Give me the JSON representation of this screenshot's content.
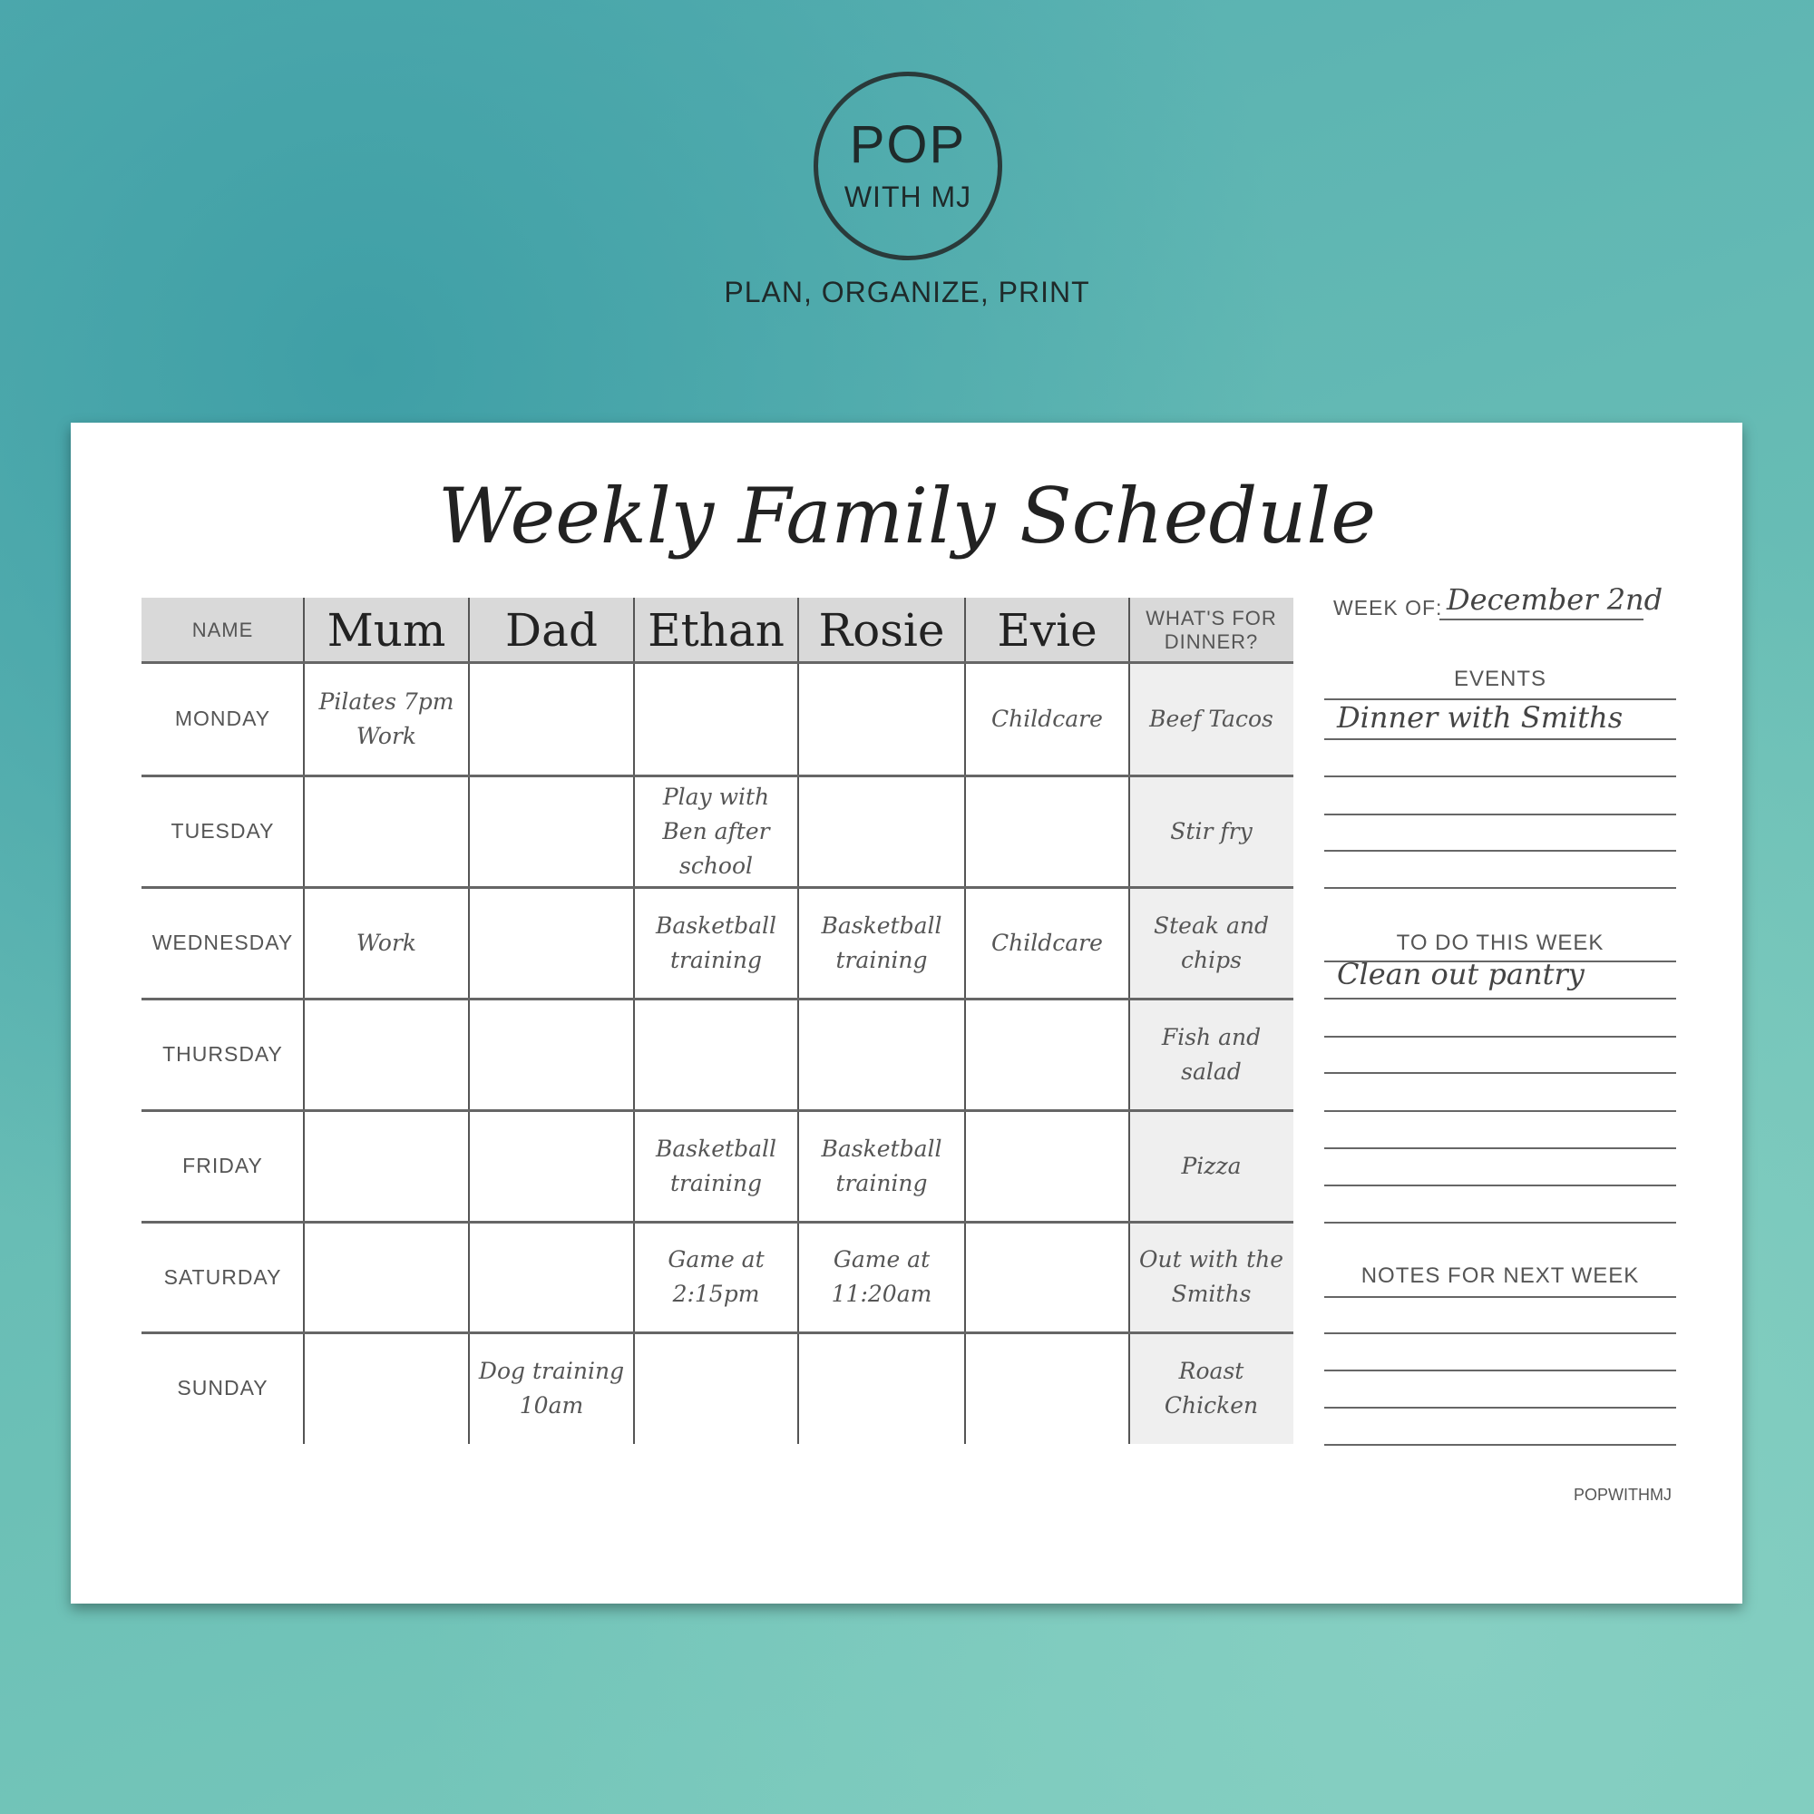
{
  "logo": {
    "line1": "POP",
    "line2": "WITH MJ"
  },
  "tagline": "PLAN, ORGANIZE, PRINT",
  "title": "Weekly Family Schedule",
  "table": {
    "name_header": "NAME",
    "members": [
      "Mum",
      "Dad",
      "Ethan",
      "Rosie",
      "Evie"
    ],
    "dinner_header": "WHAT'S FOR DINNER?",
    "rows": [
      {
        "day": "MONDAY",
        "cells": [
          "Pilates 7pm Work",
          "",
          "",
          "",
          "Childcare"
        ],
        "dinner": "Beef Tacos"
      },
      {
        "day": "TUESDAY",
        "cells": [
          "",
          "",
          "Play with Ben after school",
          "",
          ""
        ],
        "dinner": "Stir fry"
      },
      {
        "day": "WEDNESDAY",
        "cells": [
          "Work",
          "",
          "Basketball training",
          "Basketball training",
          "Childcare"
        ],
        "dinner": "Steak and chips"
      },
      {
        "day": "THURSDAY",
        "cells": [
          "",
          "",
          "",
          "",
          ""
        ],
        "dinner": "Fish and salad"
      },
      {
        "day": "FRIDAY",
        "cells": [
          "",
          "",
          "Basketball training",
          "Basketball training",
          ""
        ],
        "dinner": "Pizza"
      },
      {
        "day": "SATURDAY",
        "cells": [
          "",
          "",
          "Game at 2:15pm",
          "Game at 11:20am",
          ""
        ],
        "dinner": "Out with the Smiths"
      },
      {
        "day": "SUNDAY",
        "cells": [
          "",
          "Dog training 10am",
          "",
          "",
          ""
        ],
        "dinner": "Roast Chicken"
      }
    ]
  },
  "sidebar": {
    "week_of_label": "WEEK OF:",
    "week_of_value": "December 2nd",
    "events_label": "EVENTS",
    "events": [
      "Dinner with Smiths"
    ],
    "todo_label": "TO DO THIS WEEK",
    "todo": [
      "Clean out pantry"
    ],
    "notes_label": "NOTES FOR NEXT WEEK"
  },
  "footer": "POPWITHMJ"
}
